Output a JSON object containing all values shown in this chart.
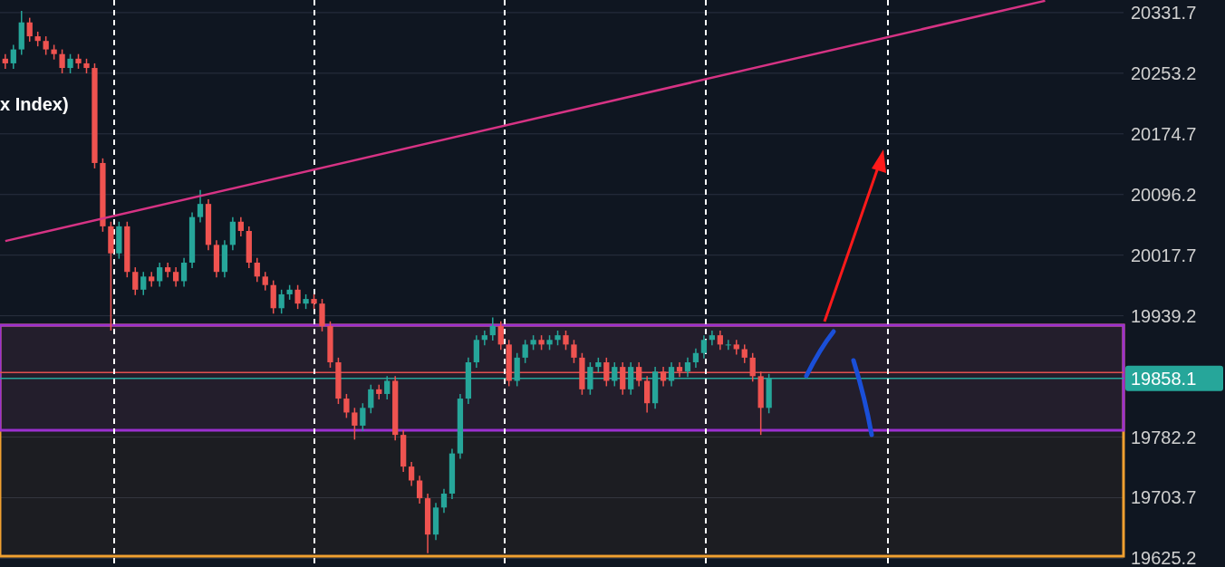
{
  "chart_data": {
    "type": "candlestick",
    "title": "x Index)",
    "categories": [
      null,
      null,
      null,
      null,
      null,
      null,
      null,
      null,
      null,
      null,
      null,
      null,
      null,
      null,
      null,
      null,
      null,
      null,
      null,
      null,
      null,
      null,
      null,
      null,
      null,
      null,
      null,
      null,
      null,
      null,
      null,
      null,
      null,
      null,
      null,
      null,
      null,
      null,
      null,
      null,
      null,
      null,
      null,
      null,
      null,
      null,
      null,
      null,
      null,
      null,
      null,
      null,
      null,
      null,
      null,
      null,
      null,
      null,
      null,
      null,
      null,
      null,
      null,
      null,
      null,
      null,
      null,
      null,
      null,
      null,
      null,
      null,
      null,
      null,
      null,
      null,
      null,
      null,
      null,
      null,
      null,
      null,
      null,
      null,
      null,
      null,
      null,
      null,
      null,
      null,
      null,
      null,
      null,
      null,
      null,
      null,
      null,
      null,
      null,
      null,
      null,
      null,
      null,
      null,
      null,
      null,
      null,
      null,
      null,
      null,
      null,
      null,
      null,
      null,
      null,
      null,
      null,
      null,
      null,
      null,
      null,
      null,
      null,
      null,
      null,
      null,
      null,
      null,
      null,
      null,
      null,
      null,
      null,
      null,
      null,
      null,
      null,
      null
    ],
    "ohlc": [
      [
        20272,
        20278,
        20259,
        20266
      ],
      [
        20266,
        20290,
        20259,
        20284
      ],
      [
        20284,
        20334,
        20277,
        20319
      ],
      [
        20319,
        20325,
        20294,
        20301
      ],
      [
        20301,
        20307,
        20288,
        20295
      ],
      [
        20295,
        20301,
        20277,
        20284
      ],
      [
        20284,
        20290,
        20271,
        20278
      ],
      [
        20278,
        20284,
        20253,
        20260
      ],
      [
        20260,
        20278,
        20253,
        20272
      ],
      [
        20272,
        20278,
        20259,
        20266
      ],
      [
        20266,
        20272,
        20253,
        20260
      ],
      [
        20260,
        20266,
        20130,
        20137
      ],
      [
        20137,
        20143,
        20048,
        20055
      ],
      [
        20055,
        20061,
        19920,
        20020
      ],
      [
        20020,
        20061,
        20013,
        20055
      ],
      [
        20055,
        20061,
        19989,
        19996
      ],
      [
        19996,
        20002,
        19966,
        19973
      ],
      [
        19973,
        19996,
        19966,
        19990
      ],
      [
        19990,
        19996,
        19977,
        19984
      ],
      [
        19984,
        20008,
        19977,
        20002
      ],
      [
        20002,
        20008,
        19989,
        19996
      ],
      [
        19996,
        20002,
        19977,
        19984
      ],
      [
        19984,
        20014,
        19977,
        20008
      ],
      [
        20008,
        20073,
        20001,
        20067
      ],
      [
        20067,
        20102,
        20060,
        20084
      ],
      [
        20084,
        20090,
        20024,
        20031
      ],
      [
        20031,
        20037,
        19989,
        19996
      ],
      [
        19996,
        20037,
        19989,
        20031
      ],
      [
        20031,
        20067,
        20024,
        20061
      ],
      [
        20061,
        20067,
        20042,
        20049
      ],
      [
        20049,
        20055,
        20001,
        20008
      ],
      [
        20008,
        20014,
        19983,
        19990
      ],
      [
        19990,
        19996,
        19972,
        19979
      ],
      [
        19979,
        19985,
        19942,
        19949
      ],
      [
        19949,
        19973,
        19942,
        19967
      ],
      [
        19967,
        19979,
        19960,
        19973
      ],
      [
        19973,
        19979,
        19948,
        19955
      ],
      [
        19955,
        19967,
        19948,
        19961
      ],
      [
        19961,
        19967,
        19948,
        19955
      ],
      [
        19955,
        19961,
        19919,
        19926
      ],
      [
        19926,
        19932,
        19872,
        19879
      ],
      [
        19879,
        19885,
        19825,
        19832
      ],
      [
        19832,
        19838,
        19807,
        19814
      ],
      [
        19814,
        19820,
        19779,
        19797
      ],
      [
        19797,
        19826,
        19790,
        19820
      ],
      [
        19820,
        19850,
        19813,
        19844
      ],
      [
        19844,
        19850,
        19831,
        19838
      ],
      [
        19838,
        19861,
        19831,
        19855
      ],
      [
        19855,
        19861,
        19778,
        19785
      ],
      [
        19785,
        19791,
        19737,
        19744
      ],
      [
        19744,
        19750,
        19719,
        19726
      ],
      [
        19726,
        19732,
        19696,
        19703
      ],
      [
        19703,
        19709,
        19632,
        19656
      ],
      [
        19656,
        19697,
        19649,
        19691
      ],
      [
        19691,
        19715,
        19684,
        19709
      ],
      [
        19709,
        19767,
        19702,
        19761
      ],
      [
        19761,
        19838,
        19754,
        19832
      ],
      [
        19832,
        19885,
        19825,
        19879
      ],
      [
        19879,
        19914,
        19872,
        19908
      ],
      [
        19908,
        19920,
        19901,
        19914
      ],
      [
        19914,
        19937,
        19907,
        19926
      ],
      [
        19926,
        19932,
        19895,
        19902
      ],
      [
        19902,
        19908,
        19848,
        19855
      ],
      [
        19855,
        19891,
        19848,
        19885
      ],
      [
        19885,
        19908,
        19878,
        19902
      ],
      [
        19902,
        19914,
        19895,
        19908
      ],
      [
        19908,
        19914,
        19895,
        19902
      ],
      [
        19902,
        19914,
        19895,
        19908
      ],
      [
        19908,
        19920,
        19901,
        19914
      ],
      [
        19914,
        19920,
        19895,
        19902
      ],
      [
        19902,
        19908,
        19878,
        19885
      ],
      [
        19885,
        19891,
        19837,
        19844
      ],
      [
        19844,
        19879,
        19837,
        19873
      ],
      [
        19873,
        19885,
        19866,
        19879
      ],
      [
        19879,
        19885,
        19848,
        19855
      ],
      [
        19855,
        19879,
        19848,
        19873
      ],
      [
        19873,
        19879,
        19837,
        19844
      ],
      [
        19844,
        19879,
        19837,
        19873
      ],
      [
        19873,
        19879,
        19848,
        19855
      ],
      [
        19855,
        19861,
        19814,
        19826
      ],
      [
        19826,
        19873,
        19819,
        19867
      ],
      [
        19867,
        19873,
        19848,
        19855
      ],
      [
        19855,
        19879,
        19848,
        19873
      ],
      [
        19873,
        19879,
        19860,
        19867
      ],
      [
        19867,
        19885,
        19860,
        19879
      ],
      [
        19879,
        19897,
        19872,
        19891
      ],
      [
        19891,
        19914,
        19884,
        19908
      ],
      [
        19908,
        19920,
        19901,
        19914
      ],
      [
        19914,
        19920,
        19895,
        19902
      ],
      [
        19902,
        19908,
        19895,
        19902
      ],
      [
        19902,
        19908,
        19889,
        19896
      ],
      [
        19896,
        19902,
        19878,
        19885
      ],
      [
        19885,
        19891,
        19854,
        19861
      ],
      [
        19861,
        19867,
        19785,
        19820
      ],
      [
        19820,
        19864,
        19813,
        19858.1
      ],
      null,
      null,
      null,
      null,
      null,
      null,
      null,
      null,
      null,
      null,
      null,
      null,
      null,
      null,
      null,
      null,
      null,
      null,
      null,
      null,
      null,
      null,
      null,
      null,
      null,
      null,
      null,
      null,
      null,
      null,
      null,
      null,
      null,
      null,
      null,
      null,
      null,
      null,
      null,
      null,
      null,
      null,
      null
    ],
    "colors": [
      "#ef5350",
      "#26a69a",
      "#26a69a",
      "#ef5350",
      "#ef5350",
      "#ef5350",
      "#ef5350",
      "#ef5350",
      "#26a69a",
      "#ef5350",
      "#ef5350",
      "#ef5350",
      "#ef5350",
      "#ef5350",
      "#26a69a",
      "#ef5350",
      "#ef5350",
      "#26a69a",
      "#ef5350",
      "#26a69a",
      "#ef5350",
      "#ef5350",
      "#26a69a",
      "#26a69a",
      "#26a69a",
      "#ef5350",
      "#ef5350",
      "#26a69a",
      "#26a69a",
      "#ef5350",
      "#ef5350",
      "#ef5350",
      "#ef5350",
      "#ef5350",
      "#26a69a",
      "#26a69a",
      "#ef5350",
      "#26a69a",
      "#ef5350",
      "#ef5350",
      "#ef5350",
      "#ef5350",
      "#ef5350",
      "#ef5350",
      "#26a69a",
      "#26a69a",
      "#ef5350",
      "#26a69a",
      "#ef5350",
      "#ef5350",
      "#ef5350",
      "#ef5350",
      "#ef5350",
      "#26a69a",
      "#26a69a",
      "#26a69a",
      "#26a69a",
      "#26a69a",
      "#26a69a",
      "#26a69a",
      "#26a69a",
      "#ef5350",
      "#ef5350",
      "#26a69a",
      "#26a69a",
      "#26a69a",
      "#ef5350",
      "#26a69a",
      "#26a69a",
      "#ef5350",
      "#ef5350",
      "#ef5350",
      "#26a69a",
      "#26a69a",
      "#ef5350",
      "#26a69a",
      "#ef5350",
      "#26a69a",
      "#ef5350",
      "#ef5350",
      "#26a69a",
      "#ef5350",
      "#26a69a",
      "#ef5350",
      "#26a69a",
      "#26a69a",
      "#26a69a",
      "#26a69a",
      "#ef5350",
      "#26a69a",
      "#ef5350",
      "#ef5350",
      "#ef5350",
      "#ef5350",
      "#26a69a",
      null,
      null,
      null,
      null,
      null,
      null,
      null,
      null,
      null,
      null,
      null,
      null,
      null,
      null,
      null,
      null,
      null,
      null,
      null,
      null,
      null,
      null,
      null,
      null,
      null,
      null,
      null,
      null,
      null,
      null,
      null,
      null,
      null,
      null,
      null,
      null,
      null,
      null,
      null,
      null,
      null,
      null,
      null
    ],
    "series": [
      {
        "type": "line",
        "color": "#d63384",
        "values": [
          20036,
          null,
          null,
          null,
          null,
          null,
          null,
          null,
          null,
          null,
          null,
          null,
          null,
          null,
          null,
          null,
          null,
          null,
          null,
          null,
          null,
          null,
          null,
          null,
          null,
          null,
          null,
          null,
          null,
          null,
          null,
          null,
          null,
          null,
          null,
          null,
          null,
          null,
          null,
          null,
          null,
          null,
          null,
          null,
          null,
          null,
          null,
          null,
          null,
          null,
          null,
          null,
          null,
          null,
          null,
          null,
          null,
          null,
          null,
          null,
          null,
          null,
          null,
          null,
          null,
          null,
          null,
          null,
          null,
          null,
          null,
          null,
          null,
          null,
          null,
          null,
          null,
          null,
          null,
          null,
          null,
          null,
          null,
          null,
          null,
          null,
          null,
          null,
          null,
          null,
          null,
          null,
          null,
          null,
          null,
          null,
          null,
          null,
          null,
          null,
          null,
          null,
          null,
          null,
          null,
          null,
          null,
          null,
          null,
          null,
          null,
          null,
          null,
          null,
          null,
          null,
          null,
          null,
          null,
          null,
          null,
          null,
          null,
          null,
          null,
          null,
          null,
          null,
          20347,
          null,
          null,
          null,
          null,
          null,
          null,
          null,
          null,
          null
        ]
      }
    ],
    "ylim": [
      19614,
      20348
    ],
    "yticks": [
      19625.2,
      19703.7,
      19782.2,
      19939.2,
      20017.7,
      20096.2,
      20174.7,
      20253.2,
      20331.7
    ],
    "grid": "y",
    "tick_labels": "y",
    "ref_lines": [
      {
        "axis": "y",
        "value": 19865.8,
        "label": null,
        "color": "#e05050"
      },
      {
        "axis": "y",
        "value": 19858.1,
        "label": "19858.1",
        "color": "#26a69a"
      }
    ],
    "bands": [
      {
        "axis": "y",
        "from": 19628,
        "to": 19927,
        "label": null,
        "color": "#f0a030"
      },
      {
        "axis": "y",
        "from": 19791,
        "to": 19927,
        "label": null,
        "color": "#9b30d0"
      }
    ]
  }
}
